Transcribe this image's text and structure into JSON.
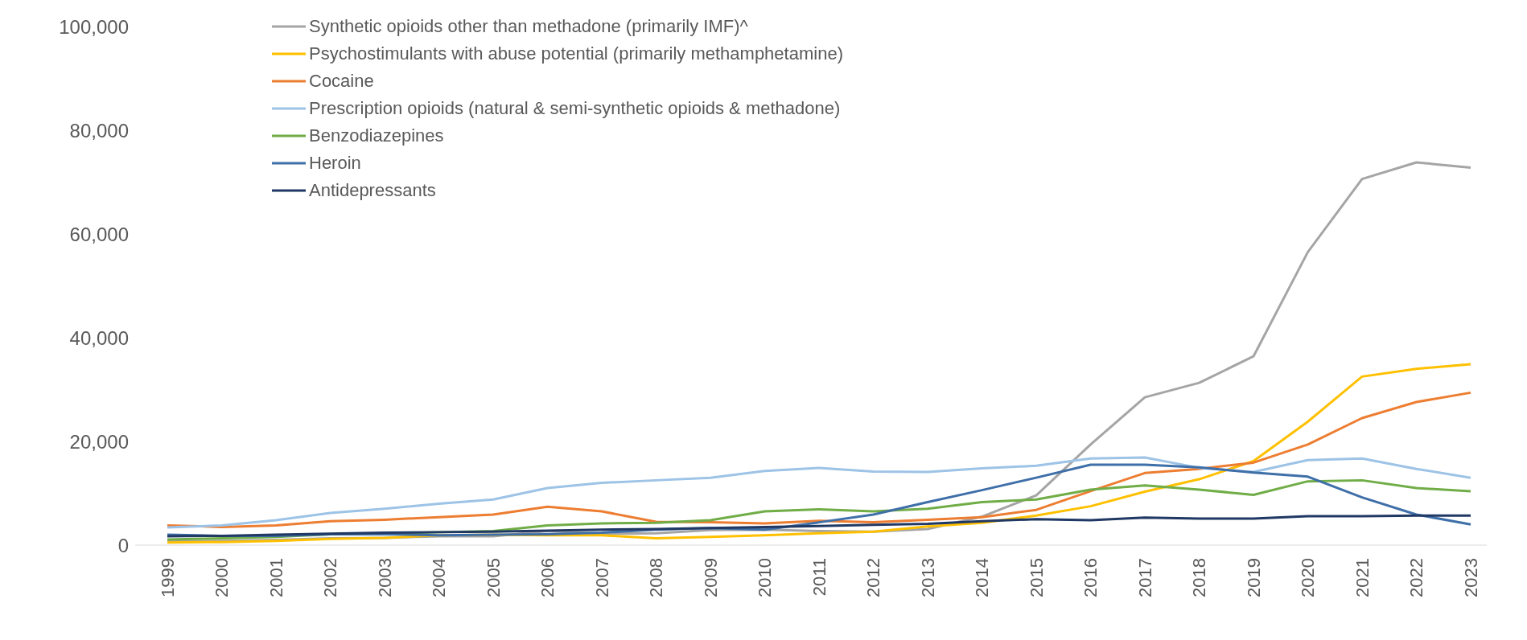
{
  "chart_data": {
    "type": "line",
    "categories": [
      "1999",
      "2000",
      "2001",
      "2002",
      "2003",
      "2004",
      "2005",
      "2006",
      "2007",
      "2008",
      "2009",
      "2010",
      "2011",
      "2012",
      "2013",
      "2014",
      "2015",
      "2016",
      "2017",
      "2018",
      "2019",
      "2020",
      "2021",
      "2022",
      "2023"
    ],
    "series": [
      {
        "name": "Synthetic opioids other than methadone (primarily IMF)^",
        "color": "#a5a5a5",
        "values": [
          700,
          800,
          1000,
          1300,
          1400,
          1700,
          1700,
          2700,
          2200,
          2300,
          2900,
          3000,
          2700,
          2600,
          3100,
          5500,
          9600,
          19400,
          28500,
          31300,
          36400,
          56500,
          70600,
          73800,
          72800
        ]
      },
      {
        "name": "Psychostimulants with abuse potential (primarily methamphetamine)",
        "color": "#ffc000",
        "values": [
          500,
          600,
          800,
          1200,
          1400,
          1900,
          2000,
          1900,
          1900,
          1300,
          1600,
          1900,
          2300,
          2600,
          3600,
          4300,
          5700,
          7500,
          10300,
          12700,
          16200,
          23800,
          32500,
          34000,
          34900
        ]
      },
      {
        "name": "Cocaine",
        "color": "#ed7d31",
        "values": [
          3800,
          3500,
          3800,
          4600,
          4900,
          5400,
          5900,
          7400,
          6500,
          4500,
          4400,
          4200,
          4700,
          4400,
          4900,
          5400,
          6800,
          10400,
          13900,
          14700,
          15900,
          19400,
          24500,
          27600,
          29400
        ]
      },
      {
        "name": "Prescription opioids (natural & semi-synthetic opioids & methadone)",
        "color": "#9dc3e6",
        "values": [
          3400,
          3800,
          4800,
          6200,
          7000,
          8000,
          8800,
          11000,
          12000,
          12500,
          13000,
          14300,
          14900,
          14200,
          14100,
          14800,
          15300,
          16700,
          16900,
          14900,
          14100,
          16400,
          16700,
          14700,
          13000
        ]
      },
      {
        "name": "Benzodiazepines",
        "color": "#70ad47",
        "values": [
          1100,
          1300,
          1600,
          2100,
          2200,
          2500,
          2700,
          3800,
          4200,
          4300,
          4800,
          6500,
          6900,
          6500,
          7000,
          8300,
          8800,
          10700,
          11500,
          10700,
          9700,
          12300,
          12500,
          11000,
          10400
        ]
      },
      {
        "name": "Heroin",
        "color": "#3f6fa8",
        "values": [
          2000,
          1800,
          1800,
          2100,
          2100,
          1900,
          2000,
          2100,
          2400,
          3000,
          3300,
          3000,
          4400,
          5900,
          8300,
          10600,
          13000,
          15500,
          15500,
          15000,
          14000,
          13200,
          9200,
          5900,
          4000
        ]
      },
      {
        "name": "Antidepressants",
        "color": "#203864",
        "values": [
          1700,
          1800,
          2000,
          2200,
          2400,
          2500,
          2600,
          2800,
          3000,
          3100,
          3300,
          3500,
          3700,
          3900,
          4100,
          4600,
          5000,
          4800,
          5300,
          5100,
          5100,
          5600,
          5600,
          5700,
          5700
        ]
      }
    ],
    "ylim": [
      0,
      100000
    ],
    "yticks": [
      0,
      {
        "value": 20000,
        "label": "20,000"
      },
      {
        "value": 40000,
        "label": "40,000"
      },
      {
        "value": 60000,
        "label": "60,000"
      },
      {
        "value": 80000,
        "label": "80,000"
      },
      {
        "value": 100000,
        "label": "100,000"
      }
    ],
    "grid": false,
    "legend": "top left",
    "marker": "none",
    "line_style": "solid"
  }
}
